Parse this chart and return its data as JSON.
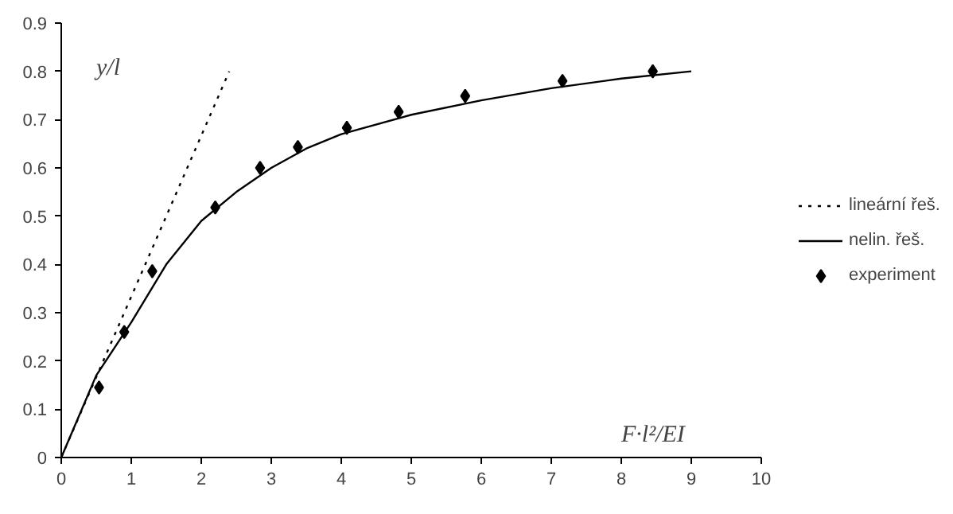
{
  "chart_data": {
    "type": "line",
    "xlabel": "F·l²/EI",
    "ylabel": "y/l",
    "xlim": [
      0,
      10
    ],
    "ylim": [
      0,
      0.9
    ],
    "xticks": [
      0,
      1,
      2,
      3,
      4,
      5,
      6,
      7,
      8,
      9,
      10
    ],
    "yticks": [
      0,
      0.1,
      0.2,
      0.3,
      0.4,
      0.5,
      0.6,
      0.7,
      0.8,
      0.9
    ],
    "grid": false,
    "legend": "right",
    "series": [
      {
        "name": "lineární řeš.",
        "line_style": "dotted",
        "color": "#000000",
        "x": [
          0,
          2.4
        ],
        "values": [
          0,
          0.8
        ]
      },
      {
        "name": "nelin. řeš.",
        "line_style": "solid",
        "color": "#000000",
        "x": [
          0,
          0.5,
          1,
          1.5,
          2,
          2.5,
          3,
          3.5,
          4,
          5,
          6,
          7,
          8,
          9
        ],
        "values": [
          0,
          0.17,
          0.28,
          0.4,
          0.49,
          0.55,
          0.6,
          0.64,
          0.67,
          0.71,
          0.74,
          0.765,
          0.785,
          0.8
        ]
      },
      {
        "name": "experiment",
        "type": "scatter",
        "marker": "diamond",
        "color": "#000000",
        "x": [
          0.54,
          0.9,
          1.3,
          2.2,
          2.84,
          3.38,
          4.08,
          4.82,
          5.77,
          7.16,
          8.45
        ],
        "values": [
          0.145,
          0.26,
          0.386,
          0.518,
          0.6,
          0.643,
          0.683,
          0.716,
          0.749,
          0.78,
          0.8
        ]
      }
    ]
  }
}
